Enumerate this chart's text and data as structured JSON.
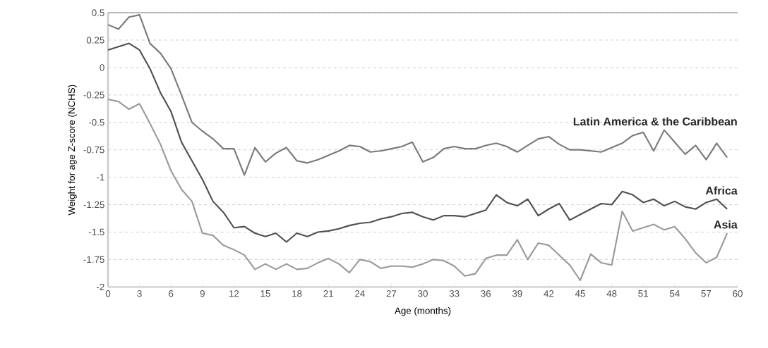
{
  "chart_data": {
    "type": "line",
    "xlabel": "Age (months)",
    "ylabel": "Weight for age Z-score (NCHS)",
    "x": [
      0,
      1,
      2,
      3,
      4,
      5,
      6,
      7,
      8,
      9,
      10,
      11,
      12,
      13,
      14,
      15,
      16,
      17,
      18,
      19,
      20,
      21,
      22,
      23,
      24,
      25,
      26,
      27,
      28,
      29,
      30,
      31,
      32,
      33,
      34,
      35,
      36,
      37,
      38,
      39,
      40,
      41,
      42,
      43,
      44,
      45,
      46,
      47,
      48,
      49,
      50,
      51,
      52,
      53,
      54,
      55,
      56,
      57,
      58,
      59
    ],
    "series": [
      {
        "name": "Latin America & the Caribbean",
        "color": "#7a7a7a",
        "values": [
          0.39,
          0.35,
          0.46,
          0.48,
          0.22,
          0.13,
          -0.01,
          -0.25,
          -0.5,
          -0.58,
          -0.65,
          -0.74,
          -0.74,
          -0.98,
          -0.73,
          -0.86,
          -0.78,
          -0.73,
          -0.85,
          -0.87,
          -0.84,
          -0.8,
          -0.76,
          -0.71,
          -0.72,
          -0.77,
          -0.76,
          -0.74,
          -0.72,
          -0.68,
          -0.86,
          -0.82,
          -0.74,
          -0.72,
          -0.74,
          -0.74,
          -0.71,
          -0.69,
          -0.72,
          -0.77,
          -0.71,
          -0.65,
          -0.63,
          -0.7,
          -0.75,
          -0.75,
          -0.76,
          -0.77,
          -0.73,
          -0.69,
          -0.62,
          -0.59,
          -0.76,
          -0.57,
          -0.68,
          -0.79,
          -0.71,
          -0.84,
          -0.69,
          -0.82
        ]
      },
      {
        "name": "Africa",
        "color": "#505050",
        "values": [
          0.16,
          0.19,
          0.22,
          0.16,
          -0.01,
          -0.23,
          -0.4,
          -0.68,
          -0.85,
          -1.02,
          -1.22,
          -1.32,
          -1.46,
          -1.45,
          -1.51,
          -1.54,
          -1.51,
          -1.59,
          -1.51,
          -1.54,
          -1.5,
          -1.49,
          -1.47,
          -1.44,
          -1.42,
          -1.41,
          -1.38,
          -1.36,
          -1.33,
          -1.32,
          -1.36,
          -1.39,
          -1.35,
          -1.35,
          -1.36,
          -1.33,
          -1.3,
          -1.16,
          -1.23,
          -1.26,
          -1.2,
          -1.35,
          -1.29,
          -1.24,
          -1.39,
          -1.34,
          -1.29,
          -1.24,
          -1.25,
          -1.13,
          -1.16,
          -1.23,
          -1.2,
          -1.26,
          -1.22,
          -1.27,
          -1.29,
          -1.23,
          -1.2,
          -1.29
        ]
      },
      {
        "name": "Asia",
        "color": "#9a9a9a",
        "values": [
          -0.29,
          -0.31,
          -0.38,
          -0.33,
          -0.51,
          -0.7,
          -0.94,
          -1.11,
          -1.22,
          -1.51,
          -1.53,
          -1.62,
          -1.66,
          -1.71,
          -1.84,
          -1.79,
          -1.84,
          -1.79,
          -1.84,
          -1.83,
          -1.78,
          -1.74,
          -1.79,
          -1.87,
          -1.75,
          -1.77,
          -1.83,
          -1.81,
          -1.81,
          -1.82,
          -1.79,
          -1.75,
          -1.76,
          -1.81,
          -1.9,
          -1.88,
          -1.74,
          -1.71,
          -1.71,
          -1.57,
          -1.75,
          -1.6,
          -1.62,
          -1.71,
          -1.8,
          -1.94,
          -1.7,
          -1.78,
          -1.8,
          -1.31,
          -1.49,
          -1.46,
          -1.43,
          -1.48,
          -1.45,
          -1.56,
          -1.69,
          -1.78,
          -1.73,
          -1.51
        ]
      }
    ],
    "xlim": [
      0,
      60
    ],
    "xticks": [
      0,
      3,
      6,
      9,
      12,
      15,
      18,
      21,
      24,
      27,
      30,
      33,
      36,
      39,
      42,
      45,
      48,
      51,
      54,
      57,
      60
    ],
    "ylim": [
      -2,
      0.5
    ],
    "yticks": [
      -2,
      -1.75,
      -1.5,
      -1.25,
      -1,
      -0.75,
      -0.5,
      -0.25,
      0,
      0.25,
      0.5
    ],
    "grid": "y",
    "legend": false,
    "marker": "none",
    "line_style": "solid"
  }
}
